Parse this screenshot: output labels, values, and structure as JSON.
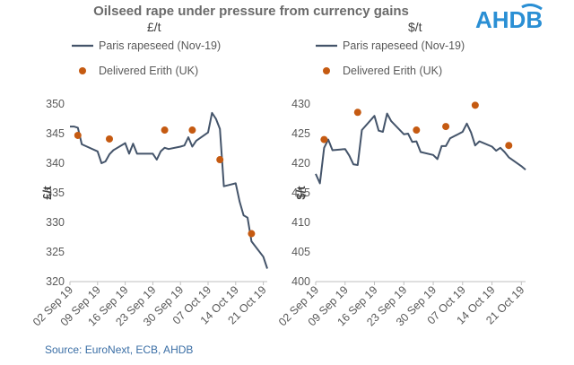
{
  "header": {
    "title": "Oilseed rape under pressure from currency gains",
    "logo_text": "AHDB",
    "source": "Source: EuroNext, ECB, AHDB"
  },
  "colors": {
    "line": "#44546a",
    "dot": "#c55a11",
    "logo": "#2a8fd4",
    "source": "#3a6ea5"
  },
  "chart_data": [
    {
      "type": "line",
      "unit_label": "£/t",
      "ylabel": "£/t",
      "ylim": [
        320,
        350
      ],
      "yticks": [
        320,
        325,
        330,
        335,
        340,
        345,
        350
      ],
      "xlim": [
        "2019-09-02",
        "2019-10-22"
      ],
      "xticks": [
        "02 Sep 19",
        "09 Sep 19",
        "16 Sep 19",
        "23 Sep 19",
        "30 Sep 19",
        "07 Oct 19",
        "14 Oct 19",
        "21 Oct 19"
      ],
      "legend": [
        {
          "label": "Paris rapeseed (Nov-19)",
          "marker": "line"
        },
        {
          "label": "Delivered Erith (UK)",
          "marker": "dot"
        }
      ],
      "series": [
        {
          "name": "Paris rapeseed (Nov-19)",
          "kind": "line",
          "x": [
            "2019-09-02",
            "2019-09-03",
            "2019-09-04",
            "2019-09-05",
            "2019-09-06",
            "2019-09-09",
            "2019-09-10",
            "2019-09-11",
            "2019-09-12",
            "2019-09-13",
            "2019-09-16",
            "2019-09-17",
            "2019-09-18",
            "2019-09-19",
            "2019-09-20",
            "2019-09-23",
            "2019-09-24",
            "2019-09-25",
            "2019-09-26",
            "2019-09-27",
            "2019-09-30",
            "2019-10-01",
            "2019-10-02",
            "2019-10-03",
            "2019-10-04",
            "2019-10-07",
            "2019-10-08",
            "2019-10-09",
            "2019-10-10",
            "2019-10-11",
            "2019-10-14",
            "2019-10-15",
            "2019-10-16",
            "2019-10-17",
            "2019-10-18",
            "2019-10-21",
            "2019-10-22"
          ],
          "values": [
            346.2,
            346.2,
            346.0,
            343.2,
            342.9,
            342.0,
            340.0,
            340.3,
            341.5,
            342.2,
            343.4,
            341.6,
            343.3,
            341.6,
            341.6,
            341.6,
            340.6,
            342.0,
            342.6,
            342.4,
            342.8,
            343.0,
            344.4,
            342.8,
            343.8,
            345.2,
            348.5,
            347.5,
            345.8,
            336.1,
            336.6,
            333.5,
            331.2,
            330.8,
            326.8,
            324.2,
            322.2
          ]
        },
        {
          "name": "Delivered Erith (UK)",
          "kind": "scatter",
          "x": [
            "2019-09-04",
            "2019-09-12",
            "2019-09-26",
            "2019-10-03",
            "2019-10-10",
            "2019-10-18"
          ],
          "values": [
            344.7,
            344.1,
            345.6,
            345.6,
            340.6,
            328.1
          ]
        }
      ]
    },
    {
      "type": "line",
      "unit_label": "$/t",
      "ylabel": "$/t",
      "ylim": [
        400,
        430
      ],
      "yticks": [
        400,
        405,
        410,
        415,
        420,
        425,
        430
      ],
      "xlim": [
        "2019-09-02",
        "2019-10-22"
      ],
      "xticks": [
        "02 Sep 19",
        "09 Sep 19",
        "16 Sep 19",
        "23 Sep 19",
        "30 Sep 19",
        "07 Oct 19",
        "14 Oct 19",
        "21 Oct 19"
      ],
      "legend": [
        {
          "label": "Paris rapeseed (Nov-19)",
          "marker": "line"
        },
        {
          "label": "Delivered Erith (UK)",
          "marker": "dot"
        }
      ],
      "series": [
        {
          "name": "Paris rapeseed (Nov-19)",
          "kind": "line",
          "x": [
            "2019-09-02",
            "2019-09-03",
            "2019-09-04",
            "2019-09-05",
            "2019-09-06",
            "2019-09-09",
            "2019-09-10",
            "2019-09-11",
            "2019-09-12",
            "2019-09-13",
            "2019-09-16",
            "2019-09-17",
            "2019-09-18",
            "2019-09-19",
            "2019-09-20",
            "2019-09-23",
            "2019-09-24",
            "2019-09-25",
            "2019-09-26",
            "2019-09-27",
            "2019-09-30",
            "2019-10-01",
            "2019-10-02",
            "2019-10-03",
            "2019-10-04",
            "2019-10-07",
            "2019-10-08",
            "2019-10-09",
            "2019-10-10",
            "2019-10-11",
            "2019-10-14",
            "2019-10-15",
            "2019-10-16",
            "2019-10-17",
            "2019-10-18",
            "2019-10-21",
            "2019-10-22"
          ],
          "values": [
            418.2,
            416.6,
            422.6,
            424.0,
            422.2,
            422.4,
            421.3,
            419.8,
            419.7,
            425.6,
            428.0,
            425.5,
            425.3,
            428.4,
            427.1,
            424.9,
            425.0,
            423.6,
            423.7,
            421.9,
            421.4,
            420.7,
            422.9,
            422.9,
            424.2,
            425.3,
            426.7,
            425.2,
            423.0,
            423.7,
            422.8,
            422.1,
            422.6,
            421.9,
            421.0,
            419.5,
            418.9
          ]
        },
        {
          "name": "Delivered Erith (UK)",
          "kind": "scatter",
          "x": [
            "2019-09-04",
            "2019-09-12",
            "2019-09-26",
            "2019-10-03",
            "2019-10-10",
            "2019-10-18"
          ],
          "values": [
            424.0,
            428.6,
            425.6,
            426.2,
            429.8,
            423.0
          ]
        }
      ]
    }
  ]
}
